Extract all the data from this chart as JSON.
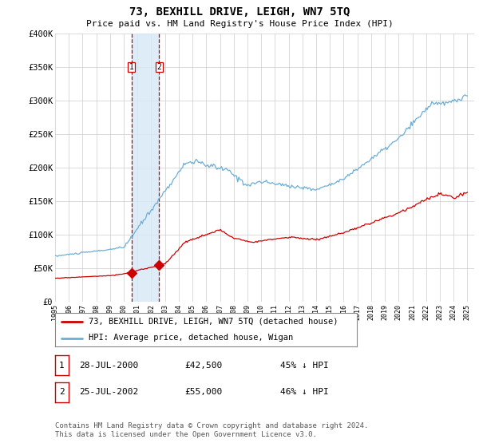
{
  "title": "73, BEXHILL DRIVE, LEIGH, WN7 5TQ",
  "subtitle": "Price paid vs. HM Land Registry's House Price Index (HPI)",
  "ylim": [
    0,
    400000
  ],
  "yticks": [
    0,
    50000,
    100000,
    150000,
    200000,
    250000,
    300000,
    350000,
    400000
  ],
  "ytick_labels": [
    "£0",
    "£50K",
    "£100K",
    "£150K",
    "£200K",
    "£250K",
    "£300K",
    "£350K",
    "£400K"
  ],
  "hpi_color": "#6baed6",
  "price_color": "#cc0000",
  "dashed_color": "#cc0000",
  "shade_color": "#d6e8f7",
  "transaction1_date": 2000.57,
  "transaction2_date": 2002.57,
  "transaction1_price": 42500,
  "transaction2_price": 55000,
  "legend_line1": "73, BEXHILL DRIVE, LEIGH, WN7 5TQ (detached house)",
  "legend_line2": "HPI: Average price, detached house, Wigan",
  "table_data": [
    {
      "num": "1",
      "date": "28-JUL-2000",
      "price": "£42,500",
      "pct": "45% ↓ HPI"
    },
    {
      "num": "2",
      "date": "25-JUL-2002",
      "price": "£55,000",
      "pct": "46% ↓ HPI"
    }
  ],
  "footnote": "Contains HM Land Registry data © Crown copyright and database right 2024.\nThis data is licensed under the Open Government Licence v3.0.",
  "background_color": "#ffffff",
  "grid_color": "#cccccc"
}
